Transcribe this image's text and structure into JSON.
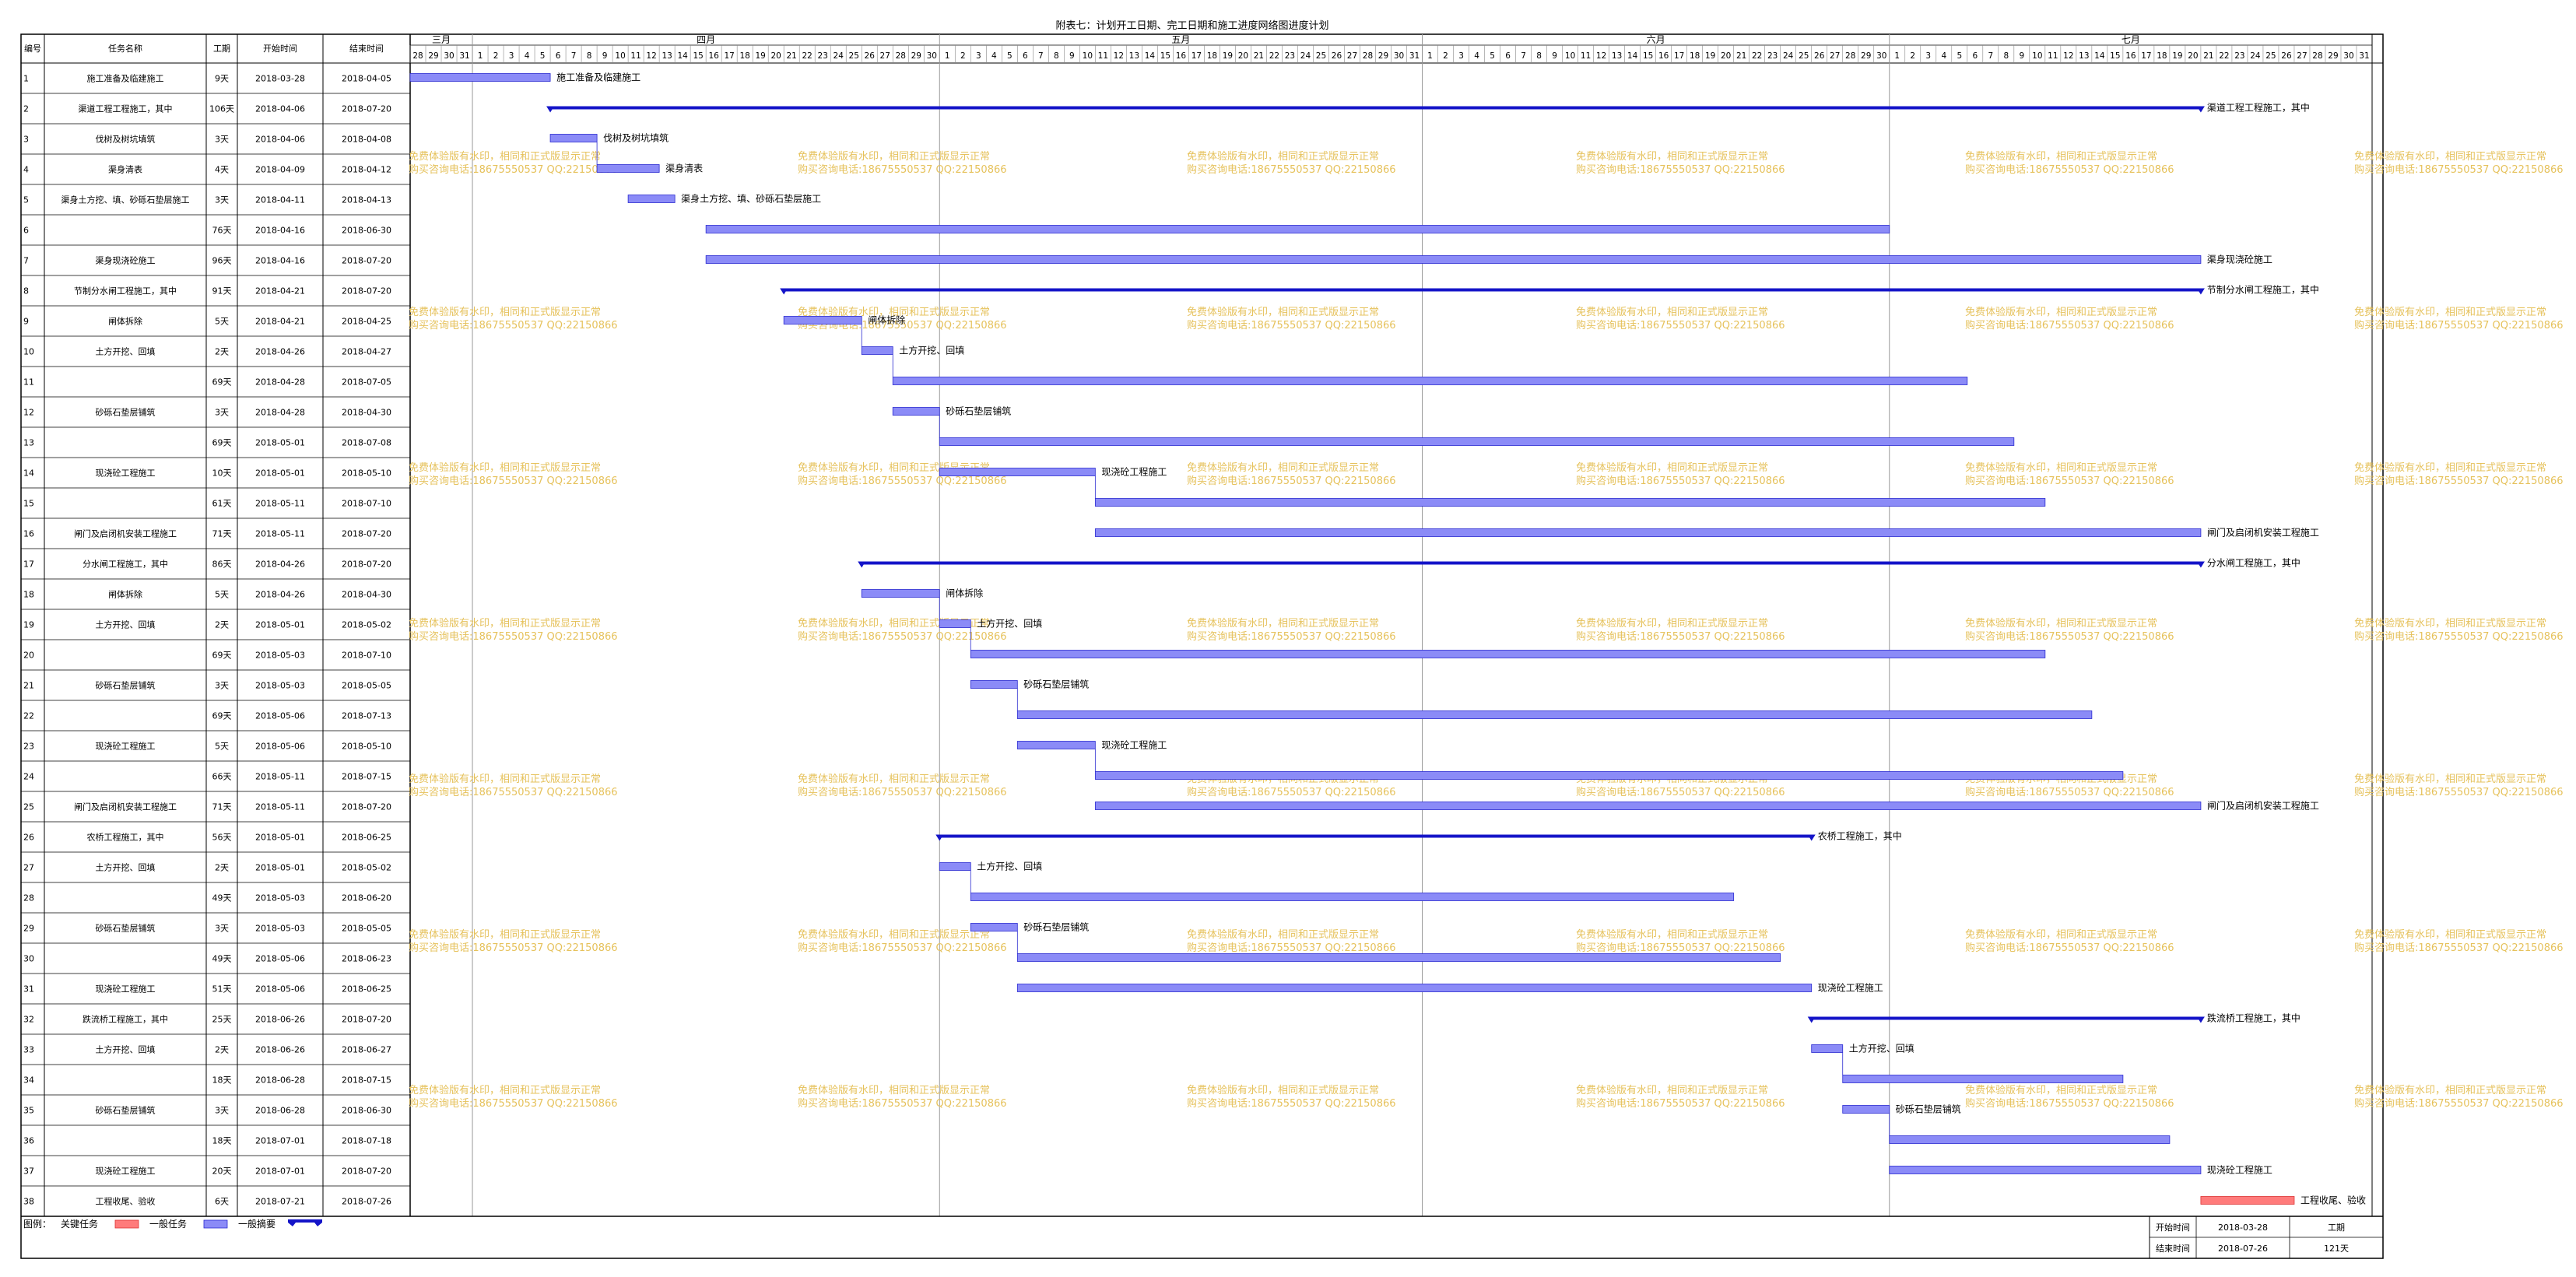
{
  "title": "附表七：计划开工日期、完工日期和施工进度网络图进度计划",
  "colors": {
    "bar_fill": "#8b8bf7",
    "bar_stroke": "#2a2ad0",
    "summary": "#1414c8",
    "critical": "#ff7b7b",
    "watermark": "#e6c25c",
    "grid": "#999999"
  },
  "table_headers": [
    "编号",
    "任务名称",
    "工期",
    "开始时间",
    "结束时间"
  ],
  "months": [
    {
      "label": "三月",
      "days": [
        "28",
        "29",
        "30",
        "31"
      ]
    },
    {
      "label": "四月",
      "days": [
        "1",
        "2",
        "3",
        "4",
        "5",
        "6",
        "7",
        "8",
        "9",
        "10",
        "11",
        "12",
        "13",
        "14",
        "15",
        "16",
        "17",
        "18",
        "19",
        "20",
        "21",
        "22",
        "23",
        "24",
        "25",
        "26",
        "27",
        "28",
        "29",
        "30"
      ]
    },
    {
      "label": "五月",
      "days": [
        "1",
        "2",
        "3",
        "4",
        "5",
        "6",
        "7",
        "8",
        "9",
        "10",
        "11",
        "12",
        "13",
        "14",
        "15",
        "16",
        "17",
        "18",
        "19",
        "20",
        "21",
        "22",
        "23",
        "24",
        "25",
        "26",
        "27",
        "28",
        "29",
        "30",
        "31"
      ]
    },
    {
      "label": "六月",
      "days": [
        "1",
        "2",
        "3",
        "4",
        "5",
        "6",
        "7",
        "8",
        "9",
        "10",
        "11",
        "12",
        "13",
        "14",
        "15",
        "16",
        "17",
        "18",
        "19",
        "20",
        "21",
        "22",
        "23",
        "24",
        "25",
        "26",
        "27",
        "28",
        "29",
        "30"
      ]
    },
    {
      "label": "七月",
      "days": [
        "1",
        "2",
        "3",
        "4",
        "5",
        "6",
        "7",
        "8",
        "9",
        "10",
        "11",
        "12",
        "13",
        "14",
        "15",
        "16",
        "17",
        "18",
        "19",
        "20",
        "21",
        "22",
        "23",
        "24",
        "25",
        "26",
        "27",
        "28",
        "29",
        "30",
        "31"
      ]
    }
  ],
  "watermark": [
    "免费体验版有水印，相同和正式版显示正常",
    "购买咨询电话:18675550537 QQ:22150866"
  ],
  "legend": {
    "label": "图例：",
    "critical": "关键任务",
    "normal": "一般任务",
    "summary": "一般摘要"
  },
  "footer": {
    "start_label": "开始时间",
    "start_value": "2018-03-28",
    "end_label": "结束时间",
    "end_value": "2018-07-26",
    "duration_label": "工期",
    "duration_value": "121天"
  },
  "chart_data": {
    "type": "gantt",
    "x_range": [
      "2018-03-28",
      "2018-07-31"
    ],
    "tasks": [
      {
        "id": "1",
        "name": "施工准备及临建施工",
        "duration": "9天",
        "start": "2018-03-28",
        "end": "2018-04-05",
        "kind": "task",
        "label": "施工准备及临建施工"
      },
      {
        "id": "2",
        "name": "渠道工程工程施工，其中",
        "duration": "106天",
        "start": "2018-04-06",
        "end": "2018-07-20",
        "kind": "summary",
        "label": "渠道工程工程施工，其中"
      },
      {
        "id": "3",
        "name": "伐树及树坑填筑",
        "duration": "3天",
        "start": "2018-04-06",
        "end": "2018-04-08",
        "kind": "task",
        "label": "伐树及树坑填筑"
      },
      {
        "id": "4",
        "name": "渠身清表",
        "duration": "4天",
        "start": "2018-04-09",
        "end": "2018-04-12",
        "kind": "task",
        "label": "渠身清表"
      },
      {
        "id": "5",
        "name": "渠身土方挖、填、砂砾石垫层施工",
        "duration": "3天",
        "start": "2018-04-11",
        "end": "2018-04-13",
        "kind": "task",
        "label": "渠身土方挖、填、砂砾石垫层施工"
      },
      {
        "id": "6",
        "name": "",
        "duration": "76天",
        "start": "2018-04-16",
        "end": "2018-06-30",
        "kind": "task",
        "label": ""
      },
      {
        "id": "7",
        "name": "渠身现浇砼施工",
        "duration": "96天",
        "start": "2018-04-16",
        "end": "2018-07-20",
        "kind": "task",
        "label": "渠身现浇砼施工"
      },
      {
        "id": "8",
        "name": "节制分水闸工程施工，其中",
        "duration": "91天",
        "start": "2018-04-21",
        "end": "2018-07-20",
        "kind": "summary",
        "label": "节制分水闸工程施工，其中"
      },
      {
        "id": "9",
        "name": "闸体拆除",
        "duration": "5天",
        "start": "2018-04-21",
        "end": "2018-04-25",
        "kind": "task",
        "label": "闸体拆除"
      },
      {
        "id": "10",
        "name": "土方开挖、回填",
        "duration": "2天",
        "start": "2018-04-26",
        "end": "2018-04-27",
        "kind": "task",
        "label": "土方开挖、回填"
      },
      {
        "id": "11",
        "name": "",
        "duration": "69天",
        "start": "2018-04-28",
        "end": "2018-07-05",
        "kind": "task",
        "label": ""
      },
      {
        "id": "12",
        "name": "砂砾石垫层铺筑",
        "duration": "3天",
        "start": "2018-04-28",
        "end": "2018-04-30",
        "kind": "task",
        "label": "砂砾石垫层铺筑"
      },
      {
        "id": "13",
        "name": "",
        "duration": "69天",
        "start": "2018-05-01",
        "end": "2018-07-08",
        "kind": "task",
        "label": ""
      },
      {
        "id": "14",
        "name": "现浇砼工程施工",
        "duration": "10天",
        "start": "2018-05-01",
        "end": "2018-05-10",
        "kind": "task",
        "label": "现浇砼工程施工"
      },
      {
        "id": "15",
        "name": "",
        "duration": "61天",
        "start": "2018-05-11",
        "end": "2018-07-10",
        "kind": "task",
        "label": ""
      },
      {
        "id": "16",
        "name": "闸门及启闭机安装工程施工",
        "duration": "71天",
        "start": "2018-05-11",
        "end": "2018-07-20",
        "kind": "task",
        "label": "闸门及启闭机安装工程施工"
      },
      {
        "id": "17",
        "name": "分水闸工程施工，其中",
        "duration": "86天",
        "start": "2018-04-26",
        "end": "2018-07-20",
        "kind": "summary",
        "label": "分水闸工程施工，其中"
      },
      {
        "id": "18",
        "name": "闸体拆除",
        "duration": "5天",
        "start": "2018-04-26",
        "end": "2018-04-30",
        "kind": "task",
        "label": "闸体拆除"
      },
      {
        "id": "19",
        "name": "土方开挖、回填",
        "duration": "2天",
        "start": "2018-05-01",
        "end": "2018-05-02",
        "kind": "task",
        "label": "土方开挖、回填"
      },
      {
        "id": "20",
        "name": "",
        "duration": "69天",
        "start": "2018-05-03",
        "end": "2018-07-10",
        "kind": "task",
        "label": ""
      },
      {
        "id": "21",
        "name": "砂砾石垫层铺筑",
        "duration": "3天",
        "start": "2018-05-03",
        "end": "2018-05-05",
        "kind": "task",
        "label": "砂砾石垫层铺筑"
      },
      {
        "id": "22",
        "name": "",
        "duration": "69天",
        "start": "2018-05-06",
        "end": "2018-07-13",
        "kind": "task",
        "label": ""
      },
      {
        "id": "23",
        "name": "现浇砼工程施工",
        "duration": "5天",
        "start": "2018-05-06",
        "end": "2018-05-10",
        "kind": "task",
        "label": "现浇砼工程施工"
      },
      {
        "id": "24",
        "name": "",
        "duration": "66天",
        "start": "2018-05-11",
        "end": "2018-07-15",
        "kind": "task",
        "label": ""
      },
      {
        "id": "25",
        "name": "闸门及启闭机安装工程施工",
        "duration": "71天",
        "start": "2018-05-11",
        "end": "2018-07-20",
        "kind": "task",
        "label": "闸门及启闭机安装工程施工"
      },
      {
        "id": "26",
        "name": "农桥工程施工，其中",
        "duration": "56天",
        "start": "2018-05-01",
        "end": "2018-06-25",
        "kind": "summary",
        "label": "农桥工程施工，其中"
      },
      {
        "id": "27",
        "name": "土方开挖、回填",
        "duration": "2天",
        "start": "2018-05-01",
        "end": "2018-05-02",
        "kind": "task",
        "label": "土方开挖、回填"
      },
      {
        "id": "28",
        "name": "",
        "duration": "49天",
        "start": "2018-05-03",
        "end": "2018-06-20",
        "kind": "task",
        "label": ""
      },
      {
        "id": "29",
        "name": "砂砾石垫层铺筑",
        "duration": "3天",
        "start": "2018-05-03",
        "end": "2018-05-05",
        "kind": "task",
        "label": "砂砾石垫层铺筑"
      },
      {
        "id": "30",
        "name": "",
        "duration": "49天",
        "start": "2018-05-06",
        "end": "2018-06-23",
        "kind": "task",
        "label": ""
      },
      {
        "id": "31",
        "name": "现浇砼工程施工",
        "duration": "51天",
        "start": "2018-05-06",
        "end": "2018-06-25",
        "kind": "task",
        "label": "现浇砼工程施工"
      },
      {
        "id": "32",
        "name": "跌流桥工程施工，其中",
        "duration": "25天",
        "start": "2018-06-26",
        "end": "2018-07-20",
        "kind": "summary",
        "label": "跌流桥工程施工，其中"
      },
      {
        "id": "33",
        "name": "土方开挖、回填",
        "duration": "2天",
        "start": "2018-06-26",
        "end": "2018-06-27",
        "kind": "task",
        "label": "土方开挖、回填"
      },
      {
        "id": "34",
        "name": "",
        "duration": "18天",
        "start": "2018-06-28",
        "end": "2018-07-15",
        "kind": "task",
        "label": ""
      },
      {
        "id": "35",
        "name": "砂砾石垫层铺筑",
        "duration": "3天",
        "start": "2018-06-28",
        "end": "2018-06-30",
        "kind": "task",
        "label": "砂砾石垫层铺筑"
      },
      {
        "id": "36",
        "name": "",
        "duration": "18天",
        "start": "2018-07-01",
        "end": "2018-07-18",
        "kind": "task",
        "label": ""
      },
      {
        "id": "37",
        "name": "现浇砼工程施工",
        "duration": "20天",
        "start": "2018-07-01",
        "end": "2018-07-20",
        "kind": "task",
        "label": "现浇砼工程施工"
      },
      {
        "id": "38",
        "name": "工程收尾、验收",
        "duration": "6天",
        "start": "2018-07-21",
        "end": "2018-07-26",
        "kind": "critical",
        "label": "工程收尾、验收"
      }
    ]
  }
}
